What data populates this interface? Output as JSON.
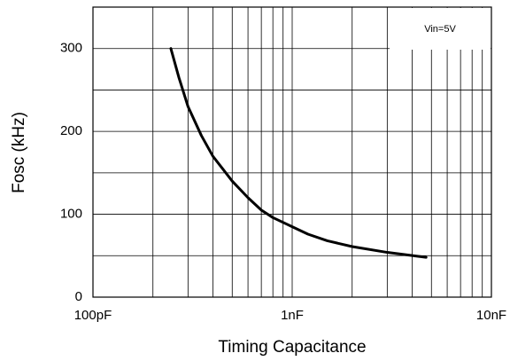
{
  "chart_data": {
    "type": "line",
    "x_label": "Timing Capacitance",
    "y_label": "Fosc (kHz)",
    "annotation": "Vin=5V",
    "x": [
      246,
      270,
      300,
      350,
      400,
      500,
      600,
      700,
      800,
      1000,
      1200,
      1500,
      2000,
      3000,
      4700
    ],
    "values": [
      300,
      265,
      230,
      195,
      170,
      140,
      120,
      105,
      96,
      85,
      76,
      68,
      61,
      54,
      48
    ],
    "color": "#000000",
    "xlog": true,
    "xlim": [
      100,
      10000
    ],
    "xticks": [
      {
        "value": 100,
        "label": "100pF"
      },
      {
        "value": 1000,
        "label": "1nF"
      },
      {
        "value": 10000,
        "label": "10nF"
      }
    ],
    "xminor": [
      200,
      300,
      400,
      500,
      600,
      700,
      800,
      900,
      2000,
      3000,
      4000,
      5000,
      6000,
      7000,
      8000,
      9000
    ],
    "ylim": [
      0,
      350
    ],
    "yticks": [
      0,
      100,
      200,
      300
    ],
    "yminor": [
      50,
      150,
      250
    ],
    "grid": true
  }
}
